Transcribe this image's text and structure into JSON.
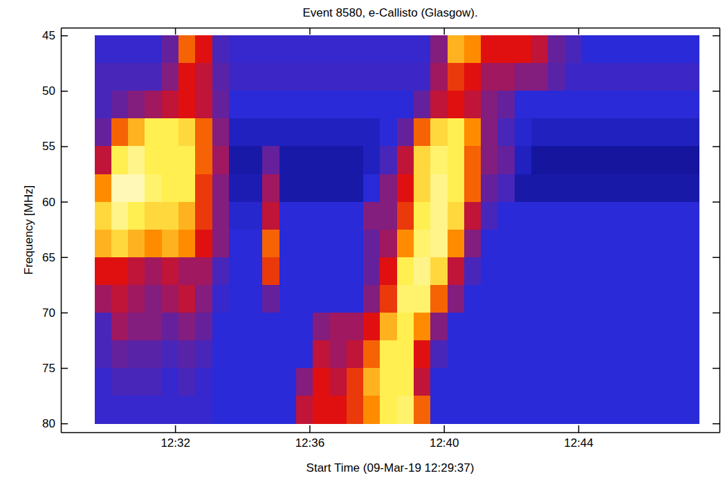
{
  "chart_data": {
    "type": "heatmap",
    "title": "Event 8580, e-Callisto (Glasgow).",
    "xlabel": "Start Time (09-Mar-19 12:29:37)",
    "ylabel": "Frequency [MHz]",
    "xlim": [
      748.6,
      768.2
    ],
    "ylim": [
      44.3,
      80.8
    ],
    "xticks": [
      {
        "value": 752,
        "label": "12:32"
      },
      {
        "value": 756,
        "label": "12:36"
      },
      {
        "value": 760,
        "label": "12:40"
      },
      {
        "value": 764,
        "label": "12:44"
      }
    ],
    "yticks": [
      45,
      50,
      55,
      60,
      65,
      70,
      75,
      80
    ],
    "x_bins": [
      749.6,
      750.1,
      750.6,
      751.1,
      751.6,
      752.1,
      752.6,
      753.1,
      753.6,
      754.1,
      754.6,
      755.1,
      755.6,
      756.1,
      756.6,
      757.1,
      757.6,
      758.1,
      758.6,
      759.1,
      759.6,
      760.1,
      760.6,
      761.1,
      761.6,
      762.1,
      762.6,
      763.1,
      763.6,
      764.1,
      764.6,
      765.1,
      765.6,
      766.1,
      766.6,
      767.1,
      767.6
    ],
    "y_bins": [
      45,
      47.5,
      50,
      52.5,
      55,
      57.5,
      60,
      62.5,
      65,
      67.5,
      70,
      72.5,
      75,
      77.5,
      80
    ],
    "zlim": [
      0,
      100
    ],
    "z": [
      [
        32,
        32,
        32,
        32,
        40,
        70,
        60,
        35,
        32,
        32,
        32,
        32,
        32,
        32,
        32,
        32,
        32,
        32,
        32,
        32,
        45,
        80,
        75,
        60,
        60,
        60,
        55,
        40,
        35,
        30,
        30,
        30,
        30,
        30,
        30,
        30
      ],
      [
        35,
        35,
        35,
        35,
        45,
        60,
        55,
        38,
        33,
        33,
        33,
        33,
        33,
        33,
        33,
        33,
        33,
        33,
        33,
        33,
        50,
        65,
        60,
        50,
        50,
        45,
        45,
        38,
        33,
        33,
        33,
        33,
        33,
        33,
        33,
        33
      ],
      [
        35,
        40,
        45,
        50,
        55,
        60,
        55,
        40,
        30,
        30,
        30,
        30,
        30,
        30,
        30,
        30,
        30,
        30,
        30,
        40,
        55,
        60,
        55,
        45,
        40,
        30,
        30,
        30,
        30,
        30,
        30,
        30,
        30,
        30,
        30,
        30
      ],
      [
        40,
        70,
        80,
        88,
        88,
        85,
        70,
        45,
        25,
        25,
        25,
        25,
        25,
        25,
        25,
        25,
        25,
        30,
        40,
        70,
        85,
        88,
        75,
        45,
        35,
        28,
        25,
        25,
        25,
        25,
        25,
        25,
        25,
        25,
        25,
        25
      ],
      [
        55,
        88,
        92,
        88,
        88,
        88,
        70,
        50,
        20,
        20,
        40,
        20,
        20,
        20,
        20,
        20,
        25,
        35,
        55,
        85,
        90,
        88,
        70,
        45,
        40,
        25,
        18,
        18,
        18,
        18,
        18,
        18,
        18,
        18,
        18,
        18
      ],
      [
        75,
        95,
        95,
        90,
        88,
        88,
        65,
        45,
        22,
        22,
        50,
        20,
        20,
        20,
        20,
        20,
        30,
        45,
        60,
        85,
        92,
        88,
        70,
        40,
        35,
        20,
        20,
        20,
        20,
        20,
        20,
        20,
        20,
        20,
        20,
        20
      ],
      [
        85,
        92,
        88,
        85,
        85,
        80,
        65,
        45,
        28,
        28,
        55,
        30,
        30,
        30,
        30,
        30,
        45,
        45,
        65,
        88,
        92,
        85,
        55,
        35,
        30,
        30,
        30,
        30,
        30,
        30,
        30,
        30,
        30,
        30,
        30,
        30
      ],
      [
        80,
        85,
        80,
        75,
        80,
        75,
        60,
        45,
        30,
        30,
        70,
        30,
        30,
        30,
        30,
        30,
        40,
        50,
        75,
        90,
        92,
        75,
        45,
        30,
        30,
        30,
        30,
        30,
        30,
        30,
        30,
        30,
        30,
        30,
        30,
        30
      ],
      [
        60,
        60,
        55,
        50,
        55,
        50,
        50,
        35,
        30,
        30,
        65,
        30,
        30,
        30,
        30,
        30,
        40,
        60,
        88,
        92,
        85,
        55,
        35,
        30,
        30,
        30,
        30,
        30,
        30,
        30,
        30,
        30,
        30,
        30,
        30,
        30
      ],
      [
        50,
        55,
        50,
        45,
        50,
        55,
        45,
        32,
        30,
        30,
        40,
        30,
        30,
        30,
        30,
        30,
        45,
        65,
        90,
        90,
        70,
        45,
        30,
        30,
        30,
        30,
        30,
        30,
        30,
        30,
        30,
        30,
        30,
        30,
        30,
        30
      ],
      [
        35,
        50,
        45,
        45,
        40,
        45,
        40,
        30,
        30,
        30,
        30,
        30,
        30,
        45,
        50,
        50,
        60,
        80,
        88,
        75,
        45,
        30,
        30,
        30,
        30,
        30,
        30,
        30,
        30,
        30,
        30,
        30,
        30,
        30,
        30,
        30
      ],
      [
        35,
        40,
        38,
        38,
        35,
        38,
        35,
        30,
        30,
        30,
        30,
        30,
        30,
        55,
        50,
        55,
        70,
        88,
        88,
        60,
        35,
        30,
        30,
        30,
        30,
        30,
        30,
        30,
        30,
        30,
        30,
        30,
        30,
        30,
        30,
        30
      ],
      [
        32,
        35,
        35,
        35,
        32,
        35,
        32,
        30,
        30,
        30,
        30,
        30,
        45,
        60,
        55,
        65,
        80,
        88,
        88,
        55,
        30,
        30,
        30,
        30,
        30,
        30,
        30,
        30,
        30,
        30,
        30,
        30,
        30,
        30,
        30,
        30
      ],
      [
        32,
        32,
        32,
        32,
        32,
        32,
        32,
        30,
        30,
        30,
        30,
        30,
        55,
        60,
        60,
        65,
        75,
        88,
        90,
        70,
        30,
        30,
        30,
        30,
        30,
        30,
        30,
        30,
        30,
        30,
        30,
        30,
        30,
        30,
        30,
        30
      ]
    ]
  }
}
